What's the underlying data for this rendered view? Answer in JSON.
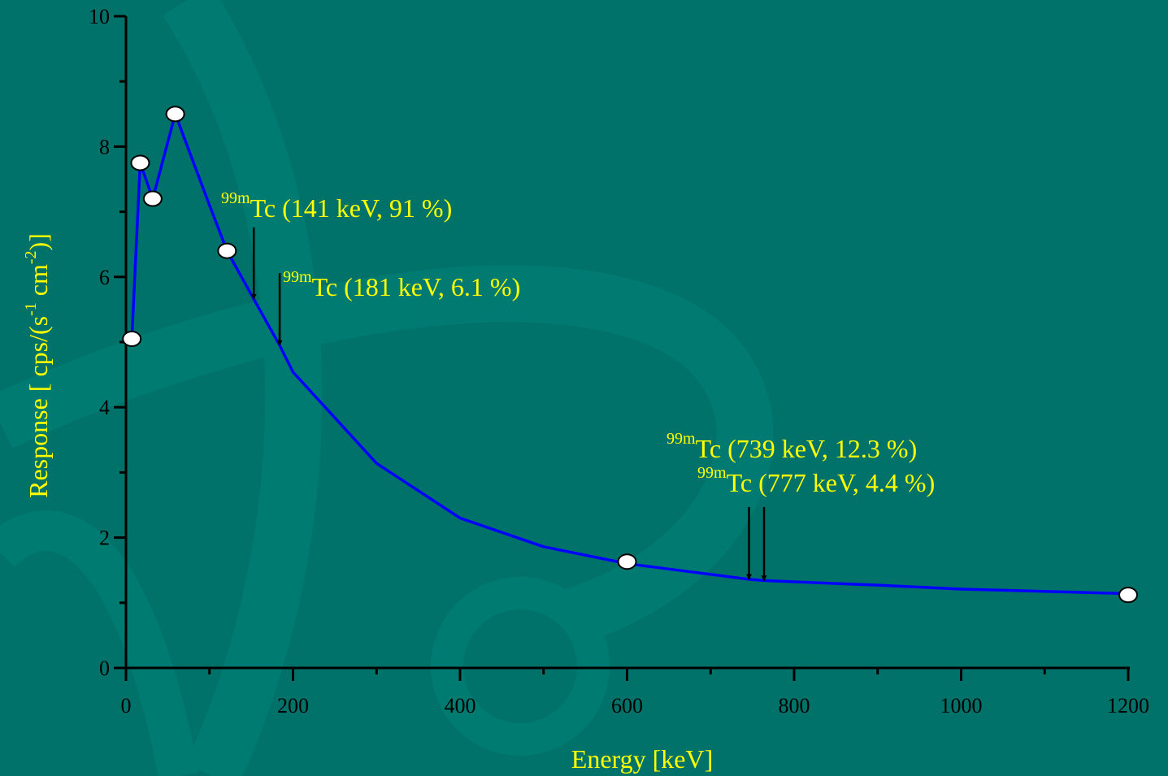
{
  "chart_data": {
    "type": "line",
    "xlabel": "Energy [keV]",
    "ylabel": [
      "Response [ cps/(s",
      "-1",
      " cm",
      "-2",
      ")]"
    ],
    "xlim": [
      0,
      1200
    ],
    "ylim": [
      0,
      10
    ],
    "xticks": [
      0,
      200,
      400,
      600,
      800,
      1000,
      1200
    ],
    "yticks": [
      0,
      2,
      4,
      6,
      8,
      10
    ],
    "xminorticks": [
      100,
      300,
      500,
      700,
      900,
      1100
    ],
    "yminorticks": [
      1,
      3,
      5,
      7,
      9
    ],
    "series": [
      {
        "color": "#0000ff",
        "x": [
          7,
          17,
          32,
          59,
          100,
          121,
          153,
          184,
          200,
          300,
          400,
          500,
          600,
          746,
          764,
          900,
          1000,
          1200
        ],
        "values": [
          5.05,
          7.75,
          7.2,
          8.5,
          7.1,
          6.4,
          5.66,
          4.95,
          4.54,
          3.14,
          2.3,
          1.86,
          1.6,
          1.36,
          1.34,
          1.27,
          1.21,
          1.14
        ]
      },
      {
        "color": "#ffffff",
        "marker": "circle",
        "x": [
          7,
          17,
          32,
          59,
          121,
          600,
          1200
        ],
        "values": [
          5.05,
          7.75,
          7.2,
          8.5,
          6.4,
          1.63,
          1.12
        ]
      }
    ],
    "annotations": [
      {
        "sup": "99m",
        "text": "Tc (141 keV, 91 %)",
        "x": 153,
        "y_start": 6.76,
        "y_end": 5.66
      },
      {
        "sup": "99m",
        "text": "Tc (181 keV, 6.1 %)",
        "x": 184,
        "y_start": 6.06,
        "y_end": 4.95
      },
      {
        "sup": "99m",
        "text": "Tc (739 keV, 12.3 %)",
        "x": 746,
        "y_start": 2.47,
        "y_end": 1.36
      },
      {
        "sup": "99m",
        "text": "Tc (777 keV, 4.4 %)",
        "x": 764,
        "y_start": 2.47,
        "y_end": 1.34
      }
    ]
  }
}
